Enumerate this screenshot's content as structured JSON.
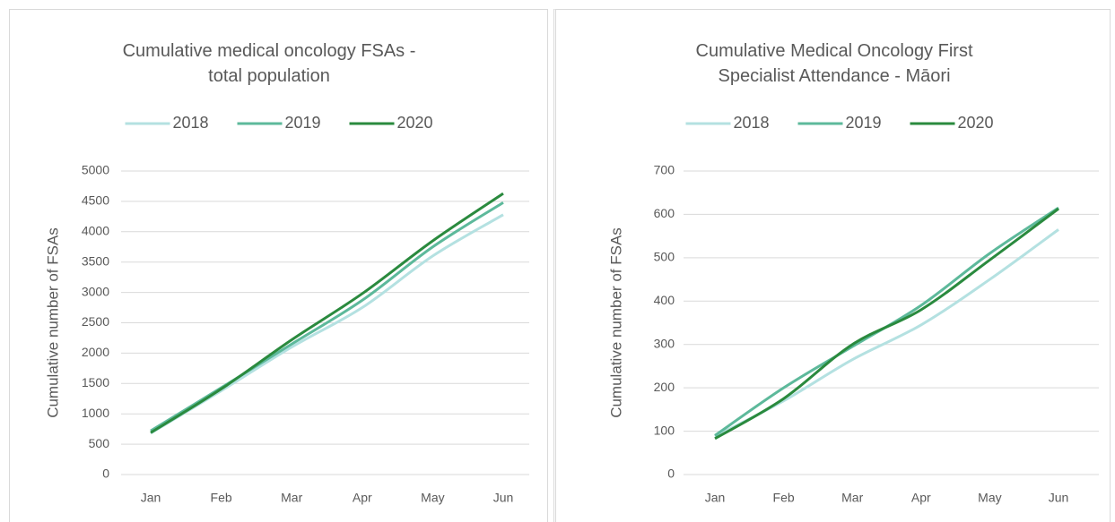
{
  "chart_data": [
    {
      "type": "line",
      "title": "Cumulative medical oncology FSAs - total population",
      "y_label": "Cumulative number of FSAs",
      "categories": [
        "Jan",
        "Feb",
        "Mar",
        "Apr",
        "May",
        "Jun"
      ],
      "series": [
        {
          "name": "2018",
          "color": "#b4e1e1",
          "values": [
            680,
            1380,
            2100,
            2750,
            3600,
            4280
          ]
        },
        {
          "name": "2019",
          "color": "#5db99b",
          "values": [
            720,
            1430,
            2150,
            2870,
            3750,
            4480
          ]
        },
        {
          "name": "2020",
          "color": "#2a8a3e",
          "values": [
            690,
            1410,
            2220,
            2980,
            3850,
            4630
          ]
        }
      ],
      "ylim": [
        0,
        5000
      ],
      "yticks": [
        0,
        500,
        1000,
        1500,
        2000,
        2500,
        3000,
        3500,
        4000,
        4500,
        5000
      ],
      "grid": true,
      "legend": "top"
    },
    {
      "type": "line",
      "title": "Cumulative Medical Oncology First Specialist Attendance - Māori",
      "y_label": "Cumulative number of FSAs",
      "categories": [
        "Jan",
        "Feb",
        "Mar",
        "Apr",
        "May",
        "Jun"
      ],
      "series": [
        {
          "name": "2018",
          "color": "#b4e1e1",
          "values": [
            88,
            170,
            265,
            345,
            450,
            565
          ]
        },
        {
          "name": "2019",
          "color": "#5db99b",
          "values": [
            90,
            200,
            295,
            390,
            510,
            615
          ]
        },
        {
          "name": "2020",
          "color": "#2a8a3e",
          "values": [
            83,
            175,
            300,
            380,
            495,
            613
          ]
        }
      ],
      "ylim": [
        0,
        700
      ],
      "yticks": [
        0,
        100,
        200,
        300,
        400,
        500,
        600,
        700
      ],
      "grid": true,
      "legend": "top"
    }
  ]
}
